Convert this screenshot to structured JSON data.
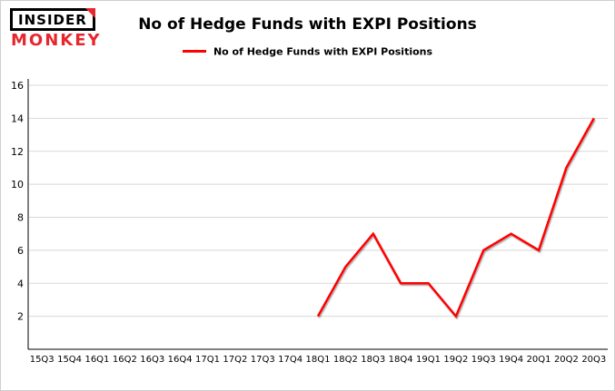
{
  "logo": {
    "line1": "INSIDER",
    "line2": "MONKEY"
  },
  "header": {
    "title": "No of Hedge Funds with EXPI Positions"
  },
  "legend": {
    "label": "No of Hedge Funds with EXPI Positions",
    "color": "#ff0000"
  },
  "chart_data": {
    "type": "line",
    "title": "No of Hedge Funds with EXPI Positions",
    "categories": [
      "15Q3",
      "15Q4",
      "16Q1",
      "16Q2",
      "16Q3",
      "16Q4",
      "17Q1",
      "17Q2",
      "17Q3",
      "17Q4",
      "18Q1",
      "18Q2",
      "18Q3",
      "18Q4",
      "19Q1",
      "19Q2",
      "19Q3",
      "19Q4",
      "20Q1",
      "20Q2",
      "20Q3"
    ],
    "series": [
      {
        "name": "No of Hedge Funds with EXPI Positions",
        "color": "#ff0000",
        "values": [
          null,
          null,
          null,
          null,
          null,
          null,
          null,
          null,
          null,
          null,
          2,
          5,
          7,
          4,
          4,
          2,
          6,
          7,
          6,
          11,
          14
        ]
      }
    ],
    "xlabel": "",
    "ylabel": "",
    "ylim": [
      0,
      16
    ],
    "yticks": [
      2,
      4,
      6,
      8,
      10,
      12,
      14,
      16
    ],
    "grid": "horizontal",
    "legend_position": "top",
    "axis_color": "#000000",
    "grid_color": "#d8d8d8"
  }
}
